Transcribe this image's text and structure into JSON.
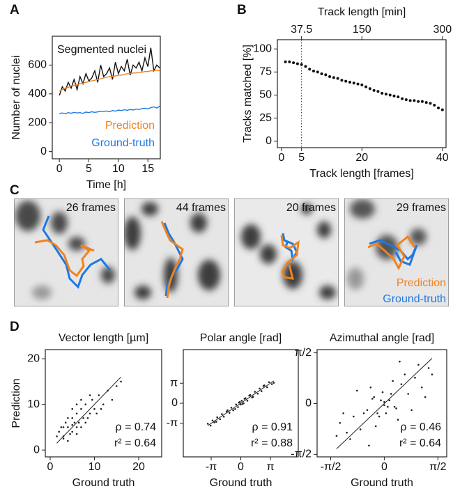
{
  "chart_data": [
    {
      "type": "line",
      "panel": "A",
      "ylabel": "Number of nuclei",
      "xlabel": "Time [h]",
      "x": [
        0,
        0.5,
        1,
        1.5,
        2,
        2.5,
        3,
        3.5,
        4,
        4.5,
        5,
        5.5,
        6,
        6.5,
        7,
        7.5,
        8,
        8.5,
        9,
        9.5,
        10,
        10.5,
        11,
        11.5,
        12,
        12.5,
        13,
        13.5,
        14,
        14.5,
        15,
        15.5,
        16,
        16.5,
        17
      ],
      "series": [
        {
          "name": "Segmented nuclei",
          "color": "#111111",
          "values": [
            390,
            450,
            420,
            480,
            440,
            500,
            430,
            520,
            470,
            540,
            490,
            510,
            560,
            480,
            600,
            520,
            540,
            580,
            500,
            620,
            540,
            590,
            560,
            640,
            530,
            600,
            580,
            620,
            560,
            650,
            590,
            720,
            560,
            600,
            580
          ]
        },
        {
          "name": "Prediction",
          "color": "#f0821e",
          "values": [
            420,
            430,
            440,
            445,
            455,
            460,
            465,
            470,
            475,
            480,
            485,
            490,
            495,
            500,
            505,
            510,
            515,
            520,
            520,
            525,
            530,
            530,
            535,
            540,
            540,
            545,
            545,
            550,
            550,
            555,
            555,
            560,
            560,
            565,
            560
          ]
        },
        {
          "name": "Ground-truth",
          "color": "#1f78e0",
          "values": [
            265,
            268,
            262,
            270,
            266,
            272,
            268,
            270,
            265,
            274,
            270,
            276,
            272,
            275,
            280,
            278,
            282,
            276,
            285,
            280,
            288,
            284,
            290,
            286,
            292,
            288,
            295,
            292,
            298,
            300,
            296,
            305,
            310,
            302,
            315
          ]
        }
      ],
      "xlim": [
        -1.2,
        17.1
      ],
      "xticks": [
        0,
        5,
        10,
        15
      ],
      "ylim": [
        -50,
        800
      ],
      "yticks": [
        0,
        200,
        400,
        600
      ]
    },
    {
      "type": "scatter",
      "panel": "B",
      "ylabel": "Tracks matched [%]",
      "xlabel": "Track length [frames]",
      "x2label": "Track length [min]",
      "x": [
        1,
        2,
        3,
        4,
        5,
        6,
        7,
        8,
        9,
        10,
        11,
        12,
        13,
        14,
        15,
        16,
        17,
        18,
        19,
        20,
        21,
        22,
        23,
        24,
        25,
        26,
        27,
        28,
        29,
        30,
        31,
        32,
        33,
        34,
        35,
        36,
        37,
        38,
        39,
        40
      ],
      "values": [
        86,
        86,
        85,
        84,
        83,
        81,
        78,
        76,
        75,
        73,
        72,
        70,
        69,
        68,
        66,
        65,
        64,
        63,
        62,
        61,
        59,
        57,
        55,
        54,
        52,
        51,
        50,
        49,
        48,
        46,
        45,
        44,
        44,
        43,
        43,
        42,
        41,
        39,
        36,
        34
      ],
      "color": "#111111",
      "vline": 5,
      "xlim": [
        -1,
        40.9
      ],
      "xticks": [
        0,
        5,
        20,
        40
      ],
      "x2lim": [
        -7.5,
        306.75
      ],
      "x2ticks": [
        37.5,
        150,
        300
      ],
      "ylim": [
        -7,
        110
      ],
      "yticks": [
        0,
        25,
        50,
        75,
        100
      ]
    },
    {
      "type": "scatter",
      "panel": "D",
      "title": "Vector length [µm]",
      "ylabel": "Prediction",
      "xlabel": "Ground truth",
      "color": "#222222",
      "diagonal": true,
      "annotations": [
        "ρ = 0.74",
        "r² = 0.64"
      ],
      "x": [
        2,
        3,
        3.5,
        4,
        4.5,
        5,
        5,
        5.5,
        6,
        6,
        6.5,
        7,
        7,
        7.5,
        8,
        8,
        9,
        9.5,
        10,
        11,
        12,
        13,
        14,
        15,
        3,
        4,
        5,
        6,
        2.5,
        7,
        8.5,
        1.5,
        10.5,
        4,
        6,
        5,
        3,
        9,
        11.5,
        16
      ],
      "values": [
        4,
        3,
        6,
        5,
        3.5,
        7,
        4,
        6,
        5,
        8,
        6,
        9,
        5,
        7,
        10,
        6,
        8,
        11,
        9,
        12,
        10,
        13,
        11,
        14,
        2.5,
        7,
        9,
        3.5,
        5,
        11,
        7,
        3,
        8,
        2,
        10,
        5.5,
        5,
        12,
        9,
        15
      ],
      "xlim": [
        -1.1,
        25.2
      ],
      "xticks": [
        0,
        10,
        20
      ],
      "ylim": [
        -1.5,
        22
      ],
      "yticks": [
        0,
        10,
        20
      ]
    },
    {
      "type": "scatter",
      "title": "Polar angle [rad]",
      "xlabel": "Ground truth",
      "color": "#222222",
      "diagonal": true,
      "annotations": [
        "ρ = 0.91",
        "r² = 0.88"
      ],
      "x": [
        -3.5,
        -3.2,
        -3,
        -2.8,
        -2.5,
        -2.2,
        -2,
        -1.8,
        -1.5,
        -1.2,
        -1,
        -0.8,
        -0.5,
        -0.3,
        -0.1,
        0,
        0.1,
        0.3,
        0.5,
        0.7,
        1,
        1.2,
        1.5,
        1.8,
        2,
        2.2,
        2.5,
        2.8,
        3,
        3.3,
        -2.6,
        -1.4,
        -0.6,
        0.4,
        1.3,
        2.4,
        3.5,
        -0.2,
        0.2,
        0.9
      ],
      "values": [
        -3.2,
        -3.5,
        -2.7,
        -3.0,
        -2.2,
        -2.5,
        -1.7,
        -2.1,
        -1.3,
        -1.5,
        -0.7,
        -1.1,
        -0.2,
        -0.6,
        0.2,
        -0.2,
        0.4,
        0,
        0.8,
        0.4,
        1.3,
        0.9,
        1.8,
        1.5,
        2.3,
        1.9,
        2.8,
        2.5,
        3.3,
        3.0,
        -2.9,
        -1.1,
        -0.9,
        0.7,
        1.0,
        2.7,
        3.2,
        0.1,
        -0.1,
        1.2
      ],
      "xlim": [
        -6.1,
        6.1
      ],
      "xticks": [
        {
          "value": -3.1416,
          "label": "-π"
        },
        0,
        {
          "value": 3.1416,
          "label": "π"
        }
      ],
      "ylim": [
        -8.4,
        8.4
      ],
      "yticks": [
        {
          "value": -3.1416,
          "label": "-π"
        },
        0,
        {
          "value": 3.1416,
          "label": "π"
        }
      ]
    },
    {
      "type": "scatter",
      "title": "Azimuthal angle [rad]",
      "xlabel": "Ground truth",
      "color": "#222222",
      "diagonal": true,
      "annotations": [
        "ρ = 0.46",
        "r² = 0.64"
      ],
      "x": [
        0,
        0.1,
        -0.1,
        0.2,
        -0.2,
        0.3,
        -0.3,
        0.5,
        -0.5,
        0.7,
        -0.7,
        0.9,
        -0.9,
        1.1,
        -1.1,
        1.3,
        -1.3,
        0.05,
        -0.05,
        0.15,
        -0.15,
        0.4,
        -0.4,
        0.6,
        -0.6,
        0.8,
        -0.8,
        1.0,
        -1.0,
        1.2,
        -1.2,
        0.25,
        -0.25,
        0.35,
        -0.35,
        1.4,
        -1.4,
        0.45,
        -0.45,
        0.0
      ],
      "values": [
        0.05,
        -0.1,
        0.1,
        0.3,
        -0.3,
        -0.1,
        0.2,
        0.6,
        -0.2,
        0.3,
        -0.8,
        0.8,
        -0.4,
        0.5,
        -0.9,
        1.1,
        -0.6,
        -0.3,
        0.35,
        0.1,
        -0.4,
        -0.5,
        0.5,
        0.9,
        -0.3,
        -0.2,
        0.4,
        1.2,
        -1.1,
        0.2,
        -0.3,
        0.7,
        -0.7,
        -0.15,
        0.15,
        0.9,
        -1.0,
        1.3,
        -1.3,
        -0.05
      ],
      "xlim": [
        -1.97,
        1.83
      ],
      "xticks": [
        {
          "value": -1.5708,
          "label": "-π/2"
        },
        0,
        {
          "value": 1.5708,
          "label": "π/2"
        }
      ],
      "ylim": [
        -1.65,
        1.67
      ],
      "yticks": [
        {
          "value": -1.5708,
          "label": "-π/2"
        },
        0,
        {
          "value": 1.5708,
          "label": "π/2"
        }
      ]
    }
  ],
  "image_panel": {
    "panel": "C",
    "tiles": [
      "26 frames",
      "44 frames",
      "20 frames",
      "29 frames"
    ],
    "legend": [
      "Prediction",
      "Ground-truth"
    ]
  }
}
